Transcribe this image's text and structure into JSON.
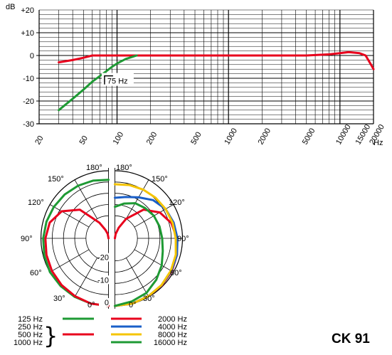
{
  "title": "CK 91",
  "chart_data": [
    {
      "type": "line",
      "x_scale": "log",
      "xlabel": "Hz",
      "ylabel": "dB",
      "xlim": [
        20,
        20000
      ],
      "ylim": [
        -30,
        20
      ],
      "x_ticks": [
        20,
        50,
        100,
        200,
        500,
        1000,
        2000,
        5000,
        10000,
        15000,
        20000
      ],
      "x_tick_labels": [
        "20",
        "50",
        "100",
        "200",
        "500",
        "1000",
        "2000",
        "5000",
        "10000",
        "15000",
        "20000"
      ],
      "y_ticks": [
        20,
        10,
        0,
        -10,
        -20,
        -30
      ],
      "y_tick_labels": [
        "+20",
        "+10",
        "0",
        "-10",
        "-20",
        "-30"
      ],
      "grid": true,
      "colors": {
        "main": "#e8001c",
        "filter": "#1e9a34"
      },
      "series": [
        {
          "key": "main",
          "x": [
            30,
            40,
            50,
            60,
            80,
            100,
            150,
            200,
            500,
            1000,
            2000,
            5000,
            8000,
            10000,
            12000,
            15000,
            17000,
            19000,
            20000
          ],
          "y": [
            -3,
            -2,
            -1,
            0,
            0,
            0,
            0,
            0,
            0,
            0,
            0,
            0,
            0.5,
            1,
            1.5,
            1,
            0,
            -4,
            -6
          ]
        },
        {
          "key": "filter",
          "x": [
            30,
            40,
            50,
            60,
            75,
            90,
            100,
            120,
            150
          ],
          "y": [
            -24,
            -19,
            -15,
            -11.5,
            -8,
            -5,
            -3.5,
            -1.5,
            0
          ]
        }
      ],
      "annotation": "75 Hz"
    },
    {
      "type": "polar",
      "angle_labels": [
        "0°",
        "30°",
        "60°",
        "90°",
        "120°",
        "150°",
        "180°"
      ],
      "r_labels": [
        "0",
        "-10",
        "-20"
      ],
      "legend": [
        {
          "labels": [
            "125 Hz"
          ],
          "color": "#1e9a34"
        },
        {
          "labels": [
            "250 Hz",
            "500 Hz",
            "1000 Hz"
          ],
          "color": "#e8001c"
        },
        {
          "labels": [
            "2000 Hz"
          ],
          "color": "#e8001c"
        },
        {
          "labels": [
            "4000 Hz"
          ],
          "color": "#1a5fc8"
        },
        {
          "labels": [
            "8000 Hz"
          ],
          "color": "#f5c400"
        },
        {
          "labels": [
            "16000 Hz"
          ],
          "color": "#1e9a34"
        }
      ],
      "series": [
        {
          "color": "#1e9a34",
          "side": "left",
          "angles": [
            0,
            15,
            30,
            45,
            60,
            75,
            90,
            105,
            120,
            135,
            150,
            165,
            180
          ],
          "db": [
            0,
            0,
            0,
            0,
            0,
            -0.5,
            -1,
            -1.5,
            -2,
            -2.5,
            -3,
            -3.5,
            -4
          ]
        },
        {
          "color": "#e8001c",
          "side": "left",
          "angles": [
            0,
            15,
            30,
            45,
            60,
            75,
            90,
            105,
            120,
            135,
            150,
            160,
            170,
            180
          ],
          "db": [
            0,
            0,
            -0.3,
            -0.6,
            -1,
            -1.5,
            -2,
            -3,
            -6,
            -12,
            -22,
            -26,
            -28,
            -30
          ]
        },
        {
          "color": "#e8001c",
          "side": "right",
          "angles": [
            0,
            15,
            30,
            45,
            60,
            75,
            90,
            105,
            120,
            135,
            150,
            160,
            170,
            180
          ],
          "db": [
            0,
            0,
            -0.3,
            -0.5,
            -0.8,
            -1.5,
            -2.5,
            -4,
            -7,
            -12,
            -20,
            -25,
            -28,
            -30
          ]
        },
        {
          "color": "#1a5fc8",
          "side": "right",
          "angles": [
            0,
            15,
            30,
            45,
            60,
            75,
            90,
            105,
            120,
            135,
            150,
            165,
            180
          ],
          "db": [
            0,
            0,
            -0.3,
            -0.6,
            -1,
            -1.5,
            -2.2,
            -3,
            -4,
            -6,
            -9,
            -11,
            -12
          ]
        },
        {
          "color": "#f5c400",
          "side": "right",
          "angles": [
            0,
            15,
            30,
            45,
            60,
            75,
            90,
            105,
            120,
            135,
            150,
            165,
            180
          ],
          "db": [
            0,
            0,
            -0.3,
            -0.7,
            -1.3,
            -2,
            -3,
            -3.5,
            -4,
            -4.5,
            -5,
            -5.5,
            -6
          ]
        },
        {
          "color": "#1e9a34",
          "side": "right",
          "angles": [
            0,
            15,
            30,
            45,
            60,
            75,
            90,
            105,
            120,
            135,
            150,
            165,
            180
          ],
          "db": [
            0,
            -1,
            -2,
            -4,
            -6,
            -8,
            -9,
            -9.5,
            -10,
            -11,
            -12,
            -14,
            -16
          ]
        }
      ]
    }
  ]
}
